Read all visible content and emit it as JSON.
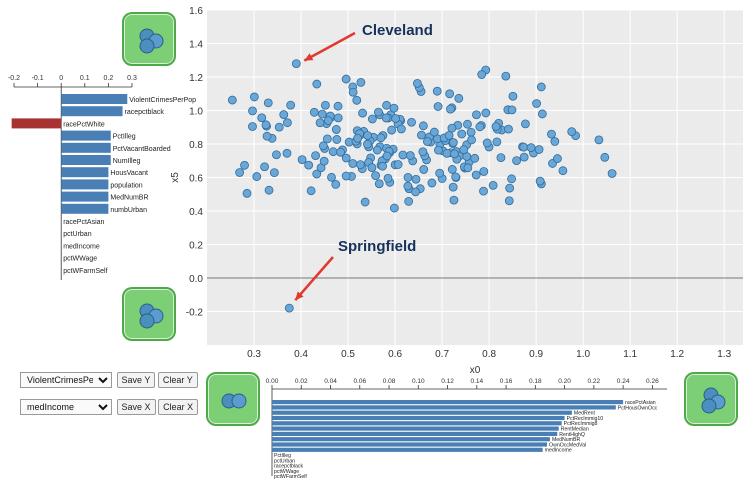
{
  "scatter": {
    "xlabel": "x0",
    "ylabel": "x5",
    "xlim": [
      0.2,
      1.34
    ],
    "ylim": [
      -0.4,
      1.6
    ],
    "xticks": [
      0.3,
      0.4,
      0.5,
      0.6,
      0.7,
      0.8,
      0.9,
      1.0,
      1.1,
      1.2,
      1.3
    ],
    "yticks": [
      -0.2,
      0.0,
      0.2,
      0.4,
      0.6,
      0.8,
      1.0,
      1.2,
      1.4,
      1.6
    ],
    "annotations": [
      {
        "label": "Cleveland",
        "x": 0.39,
        "y": 1.28
      },
      {
        "label": "Springfield",
        "x": 0.375,
        "y": -0.18
      }
    ]
  },
  "left_bars": {
    "axis_ticks": [
      "-0.2",
      "-0.1",
      "0",
      "0.1",
      "0.2",
      "0.3"
    ],
    "domain": [
      -0.2,
      0.3
    ],
    "items": [
      {
        "label": "ViolentCrimesPerPop",
        "value": 0.28
      },
      {
        "label": "racepctblack",
        "value": 0.26
      },
      {
        "label": "racePctWhite",
        "value": -0.21
      },
      {
        "label": "PctIlleg",
        "value": 0.21
      },
      {
        "label": "PctVacantBoarded",
        "value": 0.21
      },
      {
        "label": "NumIlleg",
        "value": 0.21
      },
      {
        "label": "HousVacant",
        "value": 0.2
      },
      {
        "label": "population",
        "value": 0.2
      },
      {
        "label": "MedNumBR",
        "value": 0.2
      },
      {
        "label": "numbUrban",
        "value": 0.2
      },
      {
        "label": "racePctAsian",
        "value": 0.0
      },
      {
        "label": "pctUrban",
        "value": 0.0
      },
      {
        "label": "medIncome",
        "value": 0.0
      },
      {
        "label": "pctWWage",
        "value": 0.0
      },
      {
        "label": "pctWFarmSelf",
        "value": 0.0
      }
    ]
  },
  "bottom_bars": {
    "axis_ticks": [
      "0.00",
      "0.02",
      "0.04",
      "0.06",
      "0.08",
      "0.10",
      "0.12",
      "0.14",
      "0.16",
      "0.18",
      "0.20",
      "0.22",
      "0.24",
      "0.26"
    ],
    "domain": [
      0,
      0.27
    ],
    "items": [
      {
        "label": "racePctAsian",
        "value": 0.24
      },
      {
        "label": "PctHousOwnOcc",
        "value": 0.235
      },
      {
        "label": "MedRent",
        "value": 0.205
      },
      {
        "label": "PctRecImmig10",
        "value": 0.2
      },
      {
        "label": "PctRecImmig8",
        "value": 0.198
      },
      {
        "label": "RentMedian",
        "value": 0.196
      },
      {
        "label": "RentHighQ",
        "value": 0.195
      },
      {
        "label": "MedNumBR",
        "value": 0.19
      },
      {
        "label": "OwnOccMedVal",
        "value": 0.188
      },
      {
        "label": "medIncome",
        "value": 0.185
      },
      {
        "label": "PctIlleg",
        "value": 0.0
      },
      {
        "label": "pctUrban",
        "value": 0.0
      },
      {
        "label": "racepctblack",
        "value": 0.0
      },
      {
        "label": "pctWWage",
        "value": 0.0
      },
      {
        "label": "pctWFarmSelf",
        "value": 0.0
      }
    ]
  },
  "controls": {
    "y_select": "ViolentCrimesPerPop",
    "x_select": "medIncome",
    "save_y": "Save Y",
    "clear_y": "Clear Y",
    "save_x": "Save X",
    "clear_x": "Clear X"
  },
  "colors": {
    "bar": "#4a7fb5",
    "neg_bar": "#a83232",
    "point": "#6aa7d6",
    "point_stroke": "#2f6c9d",
    "tile": "#7ccf74",
    "plot_bg": "#ebebeb"
  }
}
